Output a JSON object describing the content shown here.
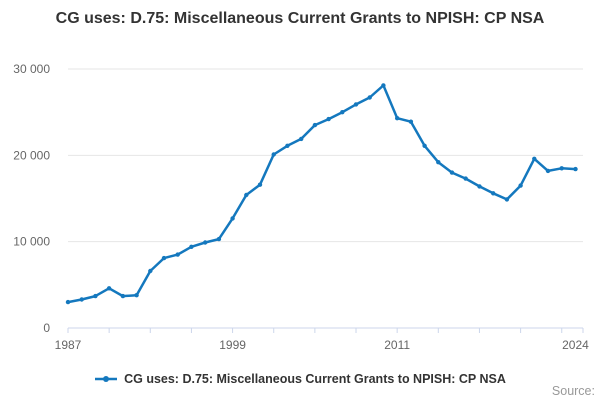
{
  "chart": {
    "title": "CG uses: D.75: Miscellaneous Current Grants to NPISH: CP NSA",
    "legend_label": "CG uses: D.75: Miscellaneous Current Grants to NPISH: CP NSA",
    "source_label": "Source:"
  },
  "colors": {
    "series": "#1478be",
    "grid": "#e6e6e6",
    "axis": "#ccd6eb",
    "title_text": "#333333",
    "axis_text": "#666666",
    "source_text": "#999999",
    "background": "#ffffff"
  },
  "chart_data": {
    "type": "line",
    "title": "CG uses: D.75: Miscellaneous Current Grants to NPISH: CP NSA",
    "series_name": "CG uses: D.75: Miscellaneous Current Grants to NPISH: CP NSA",
    "xlabel": "",
    "ylabel": "",
    "grid": true,
    "legend_position": "bottom",
    "xlim": [
      1987,
      2024.55
    ],
    "ylim": [
      0,
      30000
    ],
    "x_tick_minor_step_years": 3,
    "x_tick_labels": [
      {
        "year": 1987,
        "label": "1987"
      },
      {
        "year": 1999,
        "label": "1999"
      },
      {
        "year": 2011,
        "label": "2011"
      },
      {
        "year": 2024,
        "label": "2024"
      }
    ],
    "y_ticks": [
      {
        "value": 0,
        "label": "0"
      },
      {
        "value": 10000,
        "label": "10 000"
      },
      {
        "value": 20000,
        "label": "20 000"
      },
      {
        "value": 30000,
        "label": "30 000"
      }
    ],
    "x": [
      1987,
      1988,
      1989,
      1990,
      1991,
      1992,
      1993,
      1994,
      1995,
      1996,
      1997,
      1998,
      1999,
      2000,
      2001,
      2002,
      2003,
      2004,
      2005,
      2006,
      2007,
      2008,
      2009,
      2010,
      2011,
      2012,
      2013,
      2014,
      2015,
      2016,
      2017,
      2018,
      2019,
      2020,
      2021,
      2022,
      2023,
      2024
    ],
    "values": [
      3000,
      3300,
      3700,
      4600,
      3700,
      3800,
      6600,
      8100,
      8500,
      9400,
      9900,
      10300,
      12700,
      15400,
      16600,
      20100,
      21100,
      21900,
      23500,
      24200,
      25000,
      25900,
      26700,
      28100,
      24300,
      23900,
      21100,
      19200,
      18000,
      17300,
      16400,
      15600,
      14900,
      16500,
      19600,
      18200,
      18500,
      18400
    ]
  }
}
